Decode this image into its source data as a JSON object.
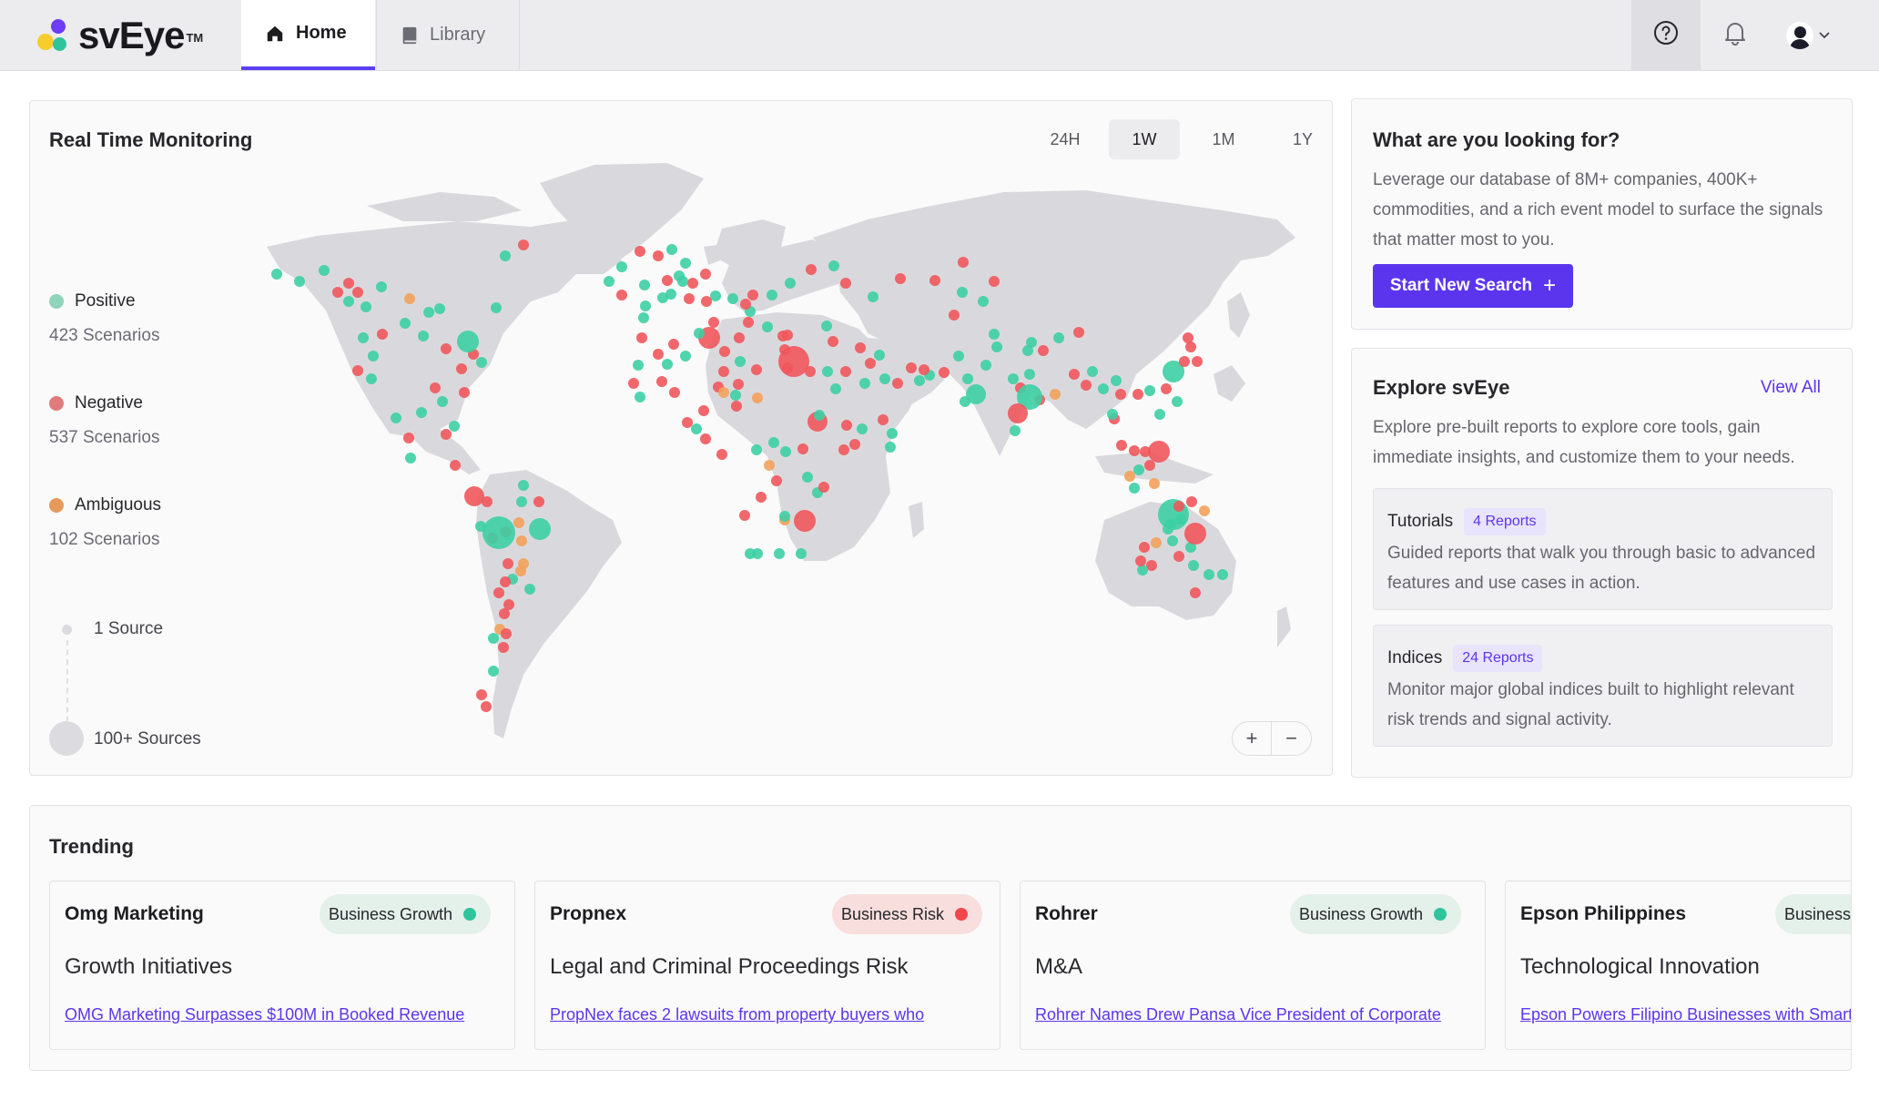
{
  "app": {
    "brand": "svEye",
    "trademark": "TM",
    "tabs": [
      {
        "label": "Home",
        "icon": "home-icon",
        "active": true
      },
      {
        "label": "Library",
        "icon": "book-icon",
        "active": false
      }
    ],
    "right_icons": [
      "help-icon",
      "bell-icon",
      "avatar",
      "chevron-down-icon"
    ]
  },
  "monitoring": {
    "title": "Real Time Monitoring",
    "ranges": [
      "24H",
      "1W",
      "1M",
      "1Y"
    ],
    "selected_range": "1W",
    "legend": [
      {
        "label": "Positive",
        "count": "423 Scenarios",
        "color": "#3dcfa4"
      },
      {
        "label": "Negative",
        "count": "537 Scenarios",
        "color": "#f0575c"
      },
      {
        "label": "Ambiguous",
        "count": "102 Scenarios",
        "color": "#f2a15b"
      }
    ],
    "source_scale": {
      "min_label": "1 Source",
      "max_label": "100+ Sources"
    },
    "zoom": {
      "in": "+",
      "out": "−"
    }
  },
  "look": {
    "title": "What are you looking for?",
    "body": "Leverage our database of 8M+ companies, 400K+ commodities, and a rich event model to surface the signals that matter most to you.",
    "button": "Start New Search",
    "button_icon": "+"
  },
  "explore": {
    "title": "Explore svEye",
    "view_all": "View All",
    "body": "Explore pre-built reports to explore core tools, gain immediate insights, and customize them to your needs.",
    "items": [
      {
        "title": "Tutorials",
        "badge": "4 Reports",
        "body": "Guided reports that walk you through basic to advanced features and use cases in action."
      },
      {
        "title": "Indices",
        "badge": "24 Reports",
        "body": "Monitor major global indices built to highlight relevant risk trends and signal activity."
      }
    ]
  },
  "trending": {
    "title": "Trending",
    "items": [
      {
        "company": "Omg Marketing",
        "tag": "Business Growth",
        "tag_type": "growth",
        "topic": "Growth Initiatives",
        "link": "OMG Marketing Surpasses $100M in Booked Revenue"
      },
      {
        "company": "Propnex",
        "tag": "Business Risk",
        "tag_type": "risk",
        "topic": "Legal and Criminal Proceedings Risk",
        "link": "PropNex faces 2 lawsuits from property buyers who"
      },
      {
        "company": "Rohrer",
        "tag": "Business Growth",
        "tag_type": "growth",
        "topic": "M&A",
        "link": "Rohrer Names Drew Pansa Vice President of Corporate"
      },
      {
        "company": "Epson Philippines",
        "tag": "Business Growth",
        "tag_type": "growth",
        "topic": "Technological Innovation",
        "link": "Epson Powers Filipino Businesses with Smart"
      }
    ]
  }
}
